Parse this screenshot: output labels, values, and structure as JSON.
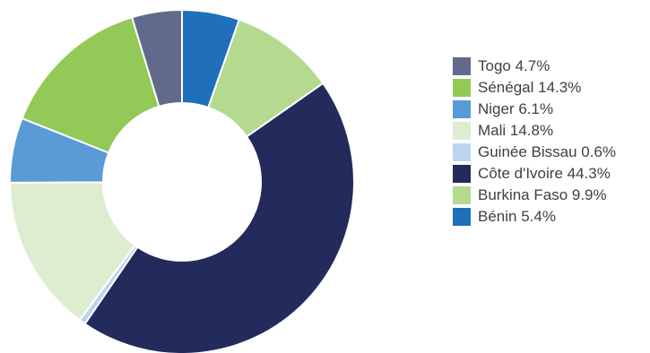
{
  "chart_data": {
    "type": "pie",
    "donut": true,
    "legend_position": "right",
    "slices": [
      {
        "label": "Bénin",
        "value": 5.4,
        "display": "Bénin 5.4%",
        "color": "#1f6fba"
      },
      {
        "label": "Burkina Faso",
        "value": 9.9,
        "display": "Burkina Faso 9.9%",
        "color": "#b3da8f"
      },
      {
        "label": "Côte d'Ivoire",
        "value": 44.3,
        "display": "Côte d'Ivoire 44.3%",
        "color": "#232a5c"
      },
      {
        "label": "Guinée Bissau",
        "value": 0.6,
        "display": "Guinée Bissau 0.6%",
        "color": "#bcd5ee"
      },
      {
        "label": "Mali",
        "value": 14.8,
        "display": "Mali 14.8%",
        "color": "#deedd0"
      },
      {
        "label": "Niger",
        "value": 6.1,
        "display": "Niger 6.1%",
        "color": "#5b9bd5"
      },
      {
        "label": "Sénégal",
        "value": 14.3,
        "display": "Sénégal 14.3%",
        "color": "#92c957"
      },
      {
        "label": "Togo",
        "value": 4.7,
        "display": "Togo 4.7%",
        "color": "#626a8c"
      }
    ],
    "legend_order": [
      "Togo",
      "Sénégal",
      "Niger",
      "Mali",
      "Guinée Bissau",
      "Côte d'Ivoire",
      "Burkina Faso",
      "Bénin"
    ]
  }
}
